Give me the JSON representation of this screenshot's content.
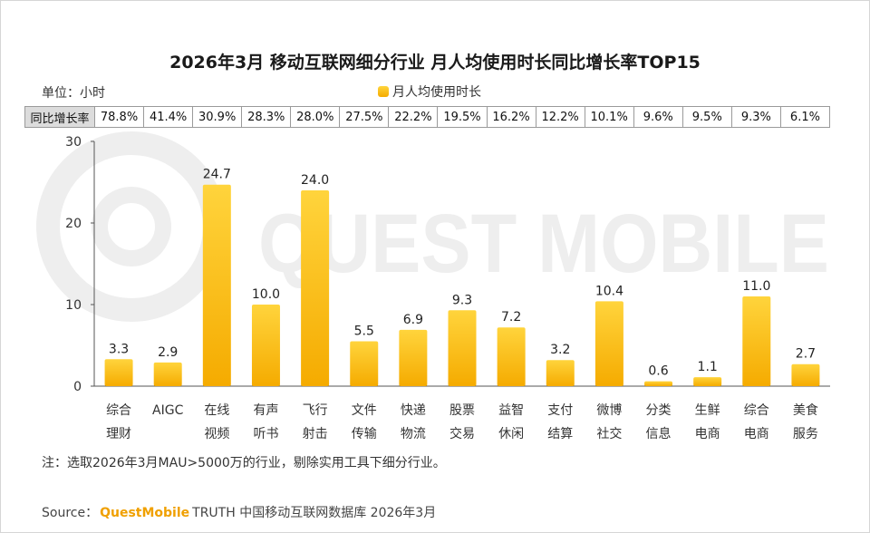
{
  "title": "2026年3月 移动互联网细分行业 月人均使用时长同比增长率TOP15",
  "unit_label": "单位：小时",
  "legend_label": "月人均使用时长",
  "watermark_text": "QUEST MOBILE",
  "yoy_header": "同比增长率",
  "yoy_values": [
    "78.8%",
    "41.4%",
    "30.9%",
    "28.3%",
    "28.0%",
    "27.5%",
    "22.2%",
    "19.5%",
    "16.2%",
    "12.2%",
    "10.1%",
    "9.6%",
    "9.5%",
    "9.3%",
    "6.1%"
  ],
  "note": "注：选取2026年3月MAU>5000万的行业，剔除实用工具下细分行业。",
  "source": {
    "prefix": "Source：",
    "brand": "QuestMobile",
    "suffix": "TRUTH 中国移动互联网数据库 2026年3月"
  },
  "colors": {
    "bar_top": "#ffd43c",
    "bar_bottom": "#f5ab00",
    "axis": "#555555",
    "watermark": "#eeeeee"
  },
  "chart_data": {
    "type": "bar",
    "title": "2026年3月 移动互联网细分行业 月人均使用时长同比增长率TOP15",
    "ylabel": "单位：小时",
    "xlabel": "",
    "ylim": [
      0,
      30
    ],
    "yticks": [
      0,
      10,
      20,
      30
    ],
    "categories": [
      [
        "综合",
        "理财"
      ],
      [
        "AIGC"
      ],
      [
        "在线",
        "视频"
      ],
      [
        "有声",
        "听书"
      ],
      [
        "飞行",
        "射击"
      ],
      [
        "文件",
        "传输"
      ],
      [
        "快递",
        "物流"
      ],
      [
        "股票",
        "交易"
      ],
      [
        "益智",
        "休闲"
      ],
      [
        "支付",
        "结算"
      ],
      [
        "微博",
        "社交"
      ],
      [
        "分类",
        "信息"
      ],
      [
        "生鲜",
        "电商"
      ],
      [
        "综合",
        "电商"
      ],
      [
        "美食",
        "服务"
      ]
    ],
    "series": [
      {
        "name": "月人均使用时长",
        "values": [
          3.3,
          2.9,
          24.7,
          10.0,
          24.0,
          5.5,
          6.9,
          9.3,
          7.2,
          3.2,
          10.4,
          0.6,
          1.1,
          11.0,
          2.7
        ]
      }
    ],
    "value_labels": [
      "3.3",
      "2.9",
      "24.7",
      "10.0",
      "24.0",
      "5.5",
      "6.9",
      "9.3",
      "7.2",
      "3.2",
      "10.4",
      "0.6",
      "1.1",
      "11.0",
      "2.7"
    ],
    "grid": false,
    "legend_position": "top"
  }
}
